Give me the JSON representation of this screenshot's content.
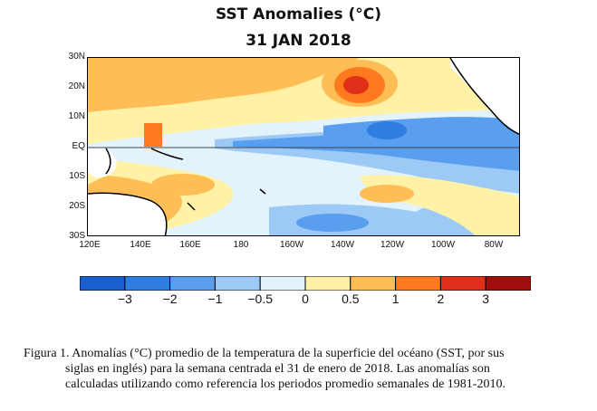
{
  "title": "SST Anomalies (°C)",
  "date": "31 JAN 2018",
  "lat_ticks": [
    "30N",
    "20N",
    "10N",
    "EQ",
    "10S",
    "20S",
    "30S"
  ],
  "lon_ticks": [
    "120E",
    "140E",
    "160E",
    "180",
    "160W",
    "140W",
    "120W",
    "100W",
    "80W"
  ],
  "colorbar": {
    "labels": [
      "−3",
      "−2",
      "−1",
      "−0.5",
      "0",
      "0.5",
      "1",
      "2",
      "3"
    ],
    "colors": [
      "#1a5fd0",
      "#2f7de0",
      "#5a9ef0",
      "#9cc9f6",
      "#e2f3fb",
      "#fff2a6",
      "#ffbd55",
      "#ff7a1e",
      "#e0301a",
      "#a00d0d"
    ]
  },
  "caption": {
    "line1": "Figura 1. Anomalías (°C) promedio de la temperatura de la superficie del océano (SST, por sus",
    "line2": "siglas en inglés) para la semana centrada el 31 de enero de 2018. Las anomalías son",
    "line3": "calculadas utilizando como referencia los periodos promedio semanales de 1981-2010."
  }
}
